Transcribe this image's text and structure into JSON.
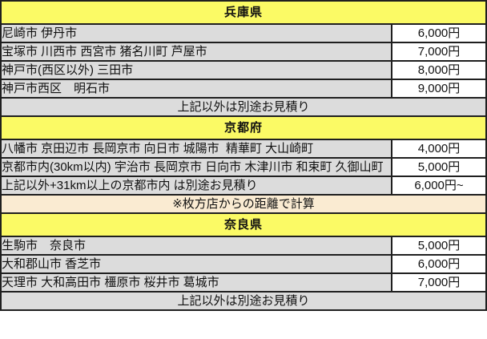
{
  "table": {
    "title_semantic": "delivery-fee-table",
    "colors": {
      "header_bg": "#fbfa65",
      "area_bg": "#dcdcdc",
      "price_bg": "#ffffff",
      "note_bg": "#faebd2",
      "border": "#1f1f1f",
      "text": "#111111"
    },
    "sections": [
      {
        "title": "兵庫県",
        "rows": [
          {
            "area": "尼崎市 伊丹市",
            "price": "6,000円"
          },
          {
            "area": "宝塚市 川西市 西宮市 猪名川町 芦屋市",
            "price": "7,000円"
          },
          {
            "area": "神戸市(西区以外) 三田市",
            "price": "8,000円"
          },
          {
            "area": "神戸市西区　明石市",
            "price": "9,000円"
          }
        ],
        "footer": {
          "text": "上記以外は別途お見積り",
          "style": "gray"
        }
      },
      {
        "title": "京都府",
        "rows": [
          {
            "area": "八幡市 京田辺市 長岡京市 向日市 城陽市  精華町 大山崎町",
            "price": "4,000円"
          },
          {
            "area": "京都市内(30km以内) 宇治市 長岡京市 日向市 木津川市 和束町 久御山町",
            "price": "5,000円"
          },
          {
            "area": "上記以外+31km以上の京都市内 は別途お見積り",
            "price": "6,000円~"
          }
        ],
        "footer": {
          "text": "※枚方店からの距離で計算",
          "style": "note"
        }
      },
      {
        "title": "奈良県",
        "rows": [
          {
            "area": "生駒市　奈良市",
            "price": "5,000円"
          },
          {
            "area": "大和郡山市 香芝市",
            "price": "6,000円"
          },
          {
            "area": "天理市 大和高田市 橿原市 桜井市 葛城市",
            "price": "7,000円"
          }
        ],
        "footer": {
          "text": "上記以外は別途お見積り",
          "style": "gray"
        }
      }
    ]
  }
}
